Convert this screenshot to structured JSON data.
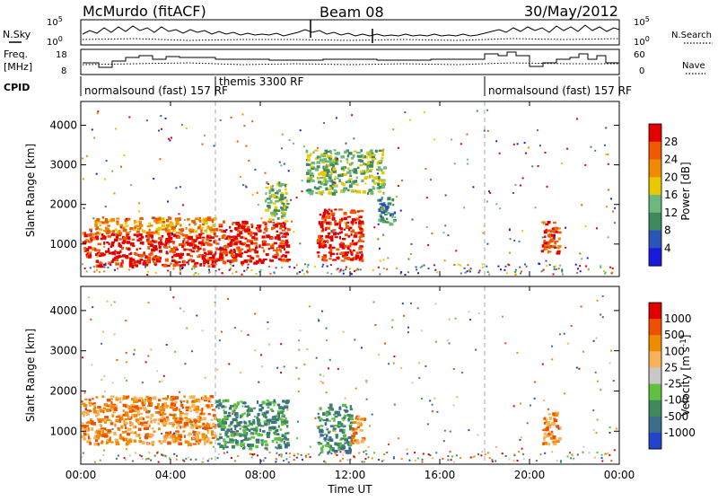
{
  "header": {
    "station": "McMurdo (fitACF)",
    "beam": "Beam 08",
    "date": "30/May/2012"
  },
  "strip_labels": {
    "nsky": "N.Sky",
    "nsearch": "N.Search",
    "freq_line1": "Freq.",
    "freq_line2": "[MHz]",
    "nave": "Nave",
    "cpid": "CPID",
    "noise_ticks_left": [
      "10^5",
      "10^0"
    ],
    "noise_ticks_right": [
      "10^5",
      "10^0"
    ],
    "freq_ticks": [
      "18",
      "8"
    ],
    "nave_ticks": [
      "60",
      "0"
    ]
  },
  "cpid_segments": [
    {
      "label": "normalsound (fast)  157 RF",
      "start_h": 0,
      "end_h": 6
    },
    {
      "label": "themis 3300 RF",
      "start_h": 6,
      "end_h": 18
    },
    {
      "label": "normalsound (fast)  157 RF",
      "start_h": 18,
      "end_h": 24
    }
  ],
  "chart_data": [
    {
      "type": "heatmap",
      "title": "",
      "quantity": "Power",
      "xlabel": "",
      "ylabel": "Slant Range [km]",
      "xlim": [
        0,
        24
      ],
      "ylim": [
        180,
        4600
      ],
      "yticks": [
        "1000",
        "2000",
        "3000",
        "4000"
      ],
      "colorbar": {
        "label": "Power [dB]",
        "tick_labels": [
          "4",
          "8",
          "12",
          "16",
          "20",
          "24",
          "28"
        ],
        "colors": [
          "#1a1adc",
          "#2a55b8",
          "#3f8a5c",
          "#6db87a",
          "#e8c800",
          "#f08a00",
          "#ef5a00",
          "#e40000"
        ]
      },
      "scatter_regions": [
        {
          "start_h": 0.0,
          "end_h": 0.6,
          "range_km": [
            700,
            1400
          ],
          "level": 6
        },
        {
          "start_h": 0.6,
          "end_h": 6.0,
          "range_km": [
            450,
            1300
          ],
          "level": 7
        },
        {
          "start_h": 0.6,
          "end_h": 6.0,
          "range_km": [
            1300,
            1700
          ],
          "level": 5
        },
        {
          "start_h": 6.0,
          "end_h": 9.2,
          "range_km": [
            550,
            1600
          ],
          "level": 7
        },
        {
          "start_h": 8.2,
          "end_h": 9.2,
          "range_km": [
            1600,
            2600
          ],
          "level": 3
        },
        {
          "start_h": 10.5,
          "end_h": 12.5,
          "range_km": [
            600,
            1900
          ],
          "level": 7
        },
        {
          "start_h": 10.0,
          "end_h": 13.5,
          "range_km": [
            2300,
            3400
          ],
          "level": 3
        },
        {
          "start_h": 13.2,
          "end_h": 14.0,
          "range_km": [
            1500,
            2200
          ],
          "level": 2
        },
        {
          "start_h": 20.5,
          "end_h": 21.3,
          "range_km": [
            800,
            1600
          ],
          "level": 6
        }
      ]
    },
    {
      "type": "heatmap",
      "title": "",
      "quantity": "Velocity",
      "xlabel": "Time UT",
      "ylabel": "Slant Range [km]",
      "xlim": [
        0,
        24
      ],
      "ylim": [
        180,
        4600
      ],
      "xticks": [
        "00:00",
        "04:00",
        "08:00",
        "12:00",
        "16:00",
        "20:00",
        "00:00"
      ],
      "yticks": [
        "1000",
        "2000",
        "3000",
        "4000"
      ],
      "colorbar": {
        "label": "Velocity [m s^-1]",
        "tick_labels": [
          "1000",
          "500",
          "100",
          "25",
          "-25",
          "-100",
          "-500",
          "-1000"
        ],
        "colors": [
          "#2244cc",
          "#3a6e8a",
          "#3f8a5c",
          "#60c040",
          "#c8c8c8",
          "#f7b25a",
          "#f08a00",
          "#ef5000",
          "#e00000"
        ]
      },
      "scatter_regions": [
        {
          "start_h": 0.0,
          "end_h": 6.0,
          "range_km": [
            700,
            1900
          ],
          "level": 6
        },
        {
          "start_h": 6.0,
          "end_h": 9.2,
          "range_km": [
            600,
            1800
          ],
          "level": 2
        },
        {
          "start_h": 10.5,
          "end_h": 12.0,
          "range_km": [
            500,
            1700
          ],
          "level": 2
        },
        {
          "start_h": 12.0,
          "end_h": 12.6,
          "range_km": [
            700,
            1400
          ],
          "level": 6
        },
        {
          "start_h": 20.5,
          "end_h": 21.3,
          "range_km": [
            700,
            1500
          ],
          "level": 6
        }
      ]
    }
  ]
}
